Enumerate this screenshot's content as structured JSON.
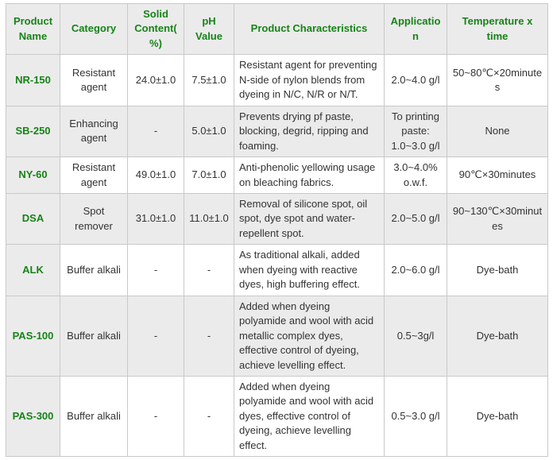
{
  "colors": {
    "accent_green": "#178317",
    "row_alt_bg": "#ebebeb",
    "header_bg": "#ebebeb",
    "border": "#c9c9c9",
    "body_text": "#333333"
  },
  "table": {
    "columns": [
      {
        "key": "name",
        "label": "Product Name"
      },
      {
        "key": "category",
        "label": "Category"
      },
      {
        "key": "solid",
        "label": "Solid Content(%)"
      },
      {
        "key": "ph",
        "label": "pH Value"
      },
      {
        "key": "chars",
        "label": "Product Characteristics"
      },
      {
        "key": "application",
        "label": "Application"
      },
      {
        "key": "temp",
        "label": "Temperature x time"
      }
    ],
    "rows": [
      {
        "name": "NR-150",
        "category": "Resistant agent",
        "solid": "24.0±1.0",
        "ph": "7.5±1.0",
        "chars": "Resistant agent for preventing N-side of nylon blends from dyeing in N/C, N/R or N/T.",
        "application": "2.0~4.0 g/l",
        "temp": "50~80℃×20minutes"
      },
      {
        "name": "SB-250",
        "category": "Enhancing agent",
        "solid": "-",
        "ph": "5.0±1.0",
        "chars": "Prevents drying pf paste, blocking, degrid, ripping and foaming.",
        "application": "To printing paste: 1.0~3.0 g/l",
        "temp": "None"
      },
      {
        "name": "NY-60",
        "category": "Resistant agent",
        "solid": "49.0±1.0",
        "ph": "7.0±1.0",
        "chars": "Anti-phenolic yellowing usage on bleaching fabrics.",
        "application": "3.0~4.0% o.w.f.",
        "temp": "90℃×30minutes"
      },
      {
        "name": "DSA",
        "category": "Spot remover",
        "solid": "31.0±1.0",
        "ph": "11.0±1.0",
        "chars": "Removal of silicone spot, oil spot, dye spot and water-repellent spot.",
        "application": "2.0~5.0 g/l",
        "temp": "90~130℃×30minutes"
      },
      {
        "name": "ALK",
        "category": "Buffer alkali",
        "solid": "-",
        "ph": "-",
        "chars": "As traditional alkali, added when dyeing with reactive dyes, high buffering effect.",
        "application": "2.0~6.0 g/l",
        "temp": "Dye-bath"
      },
      {
        "name": "PAS-100",
        "category": "Buffer alkali",
        "solid": "-",
        "ph": "-",
        "chars": "Added when dyeing polyamide and wool with acid metallic complex dyes, effective control of dyeing, achieve levelling effect.",
        "application": "0.5~3g/l",
        "temp": "Dye-bath"
      },
      {
        "name": "PAS-300",
        "category": "Buffer alkali",
        "solid": "-",
        "ph": "-",
        "chars": "Added when dyeing polyamide and wool with acid dyes, effective control of dyeing, achieve levelling effect.",
        "application": "0.5~3.0 g/l",
        "temp": "Dye-bath"
      }
    ]
  }
}
